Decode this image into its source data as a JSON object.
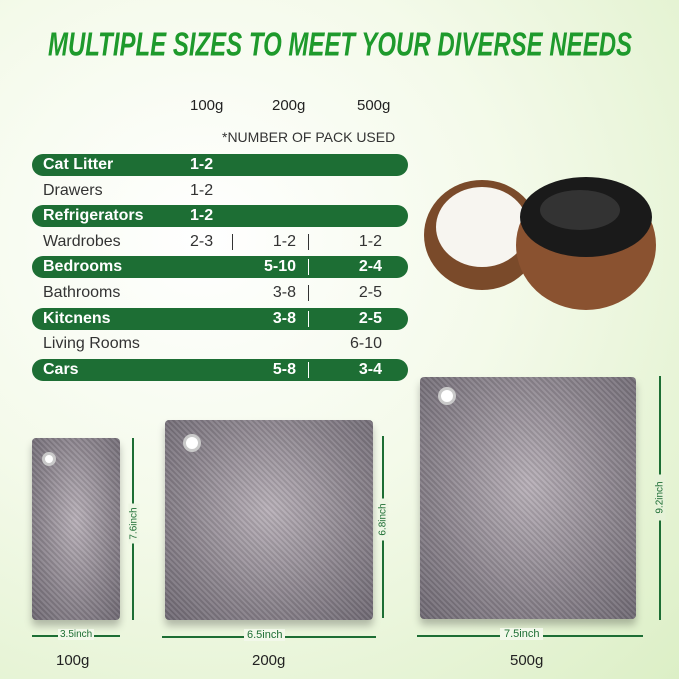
{
  "title": "MULTIPLE SIZES TO MEET YOUR DIVERSE NEEDS",
  "sizes": [
    "100g",
    "200g",
    "500g"
  ],
  "note": "*NUMBER OF PACK USED",
  "rows": [
    {
      "label": "Cat Litter",
      "style": "bar",
      "values": [
        "1-2",
        "",
        ""
      ]
    },
    {
      "label": "Drawers",
      "style": "plain",
      "values": [
        "1-2",
        "",
        ""
      ]
    },
    {
      "label": "Refrigerators",
      "style": "bar",
      "values": [
        "1-2",
        "",
        ""
      ]
    },
    {
      "label": "Wardrobes",
      "style": "plain",
      "values": [
        "2-3",
        "1-2",
        "1-2"
      ]
    },
    {
      "label": "Bedrooms",
      "style": "bar",
      "values": [
        "",
        "5-10",
        "2-4"
      ]
    },
    {
      "label": "Bathrooms",
      "style": "plain",
      "values": [
        "",
        "3-8",
        "2-5"
      ]
    },
    {
      "label": "Kitcnens",
      "style": "bar",
      "values": [
        "",
        "3-8",
        "2-5"
      ]
    },
    {
      "label": "Living Rooms",
      "style": "plain",
      "values": [
        "",
        "",
        "6-10"
      ]
    },
    {
      "label": "Cars",
      "style": "bar",
      "values": [
        "",
        "5-8",
        "3-4"
      ]
    }
  ],
  "bags": [
    {
      "weight": "100g",
      "width": "3.5inch",
      "height": "7.6inch"
    },
    {
      "weight": "200g",
      "width": "6.5inch",
      "height": "6.8inch"
    },
    {
      "weight": "500g",
      "width": "7.5inch",
      "height": "9.2inch"
    }
  ],
  "colors": {
    "title": "#1e9a2c",
    "bar": "#1d6e34"
  }
}
